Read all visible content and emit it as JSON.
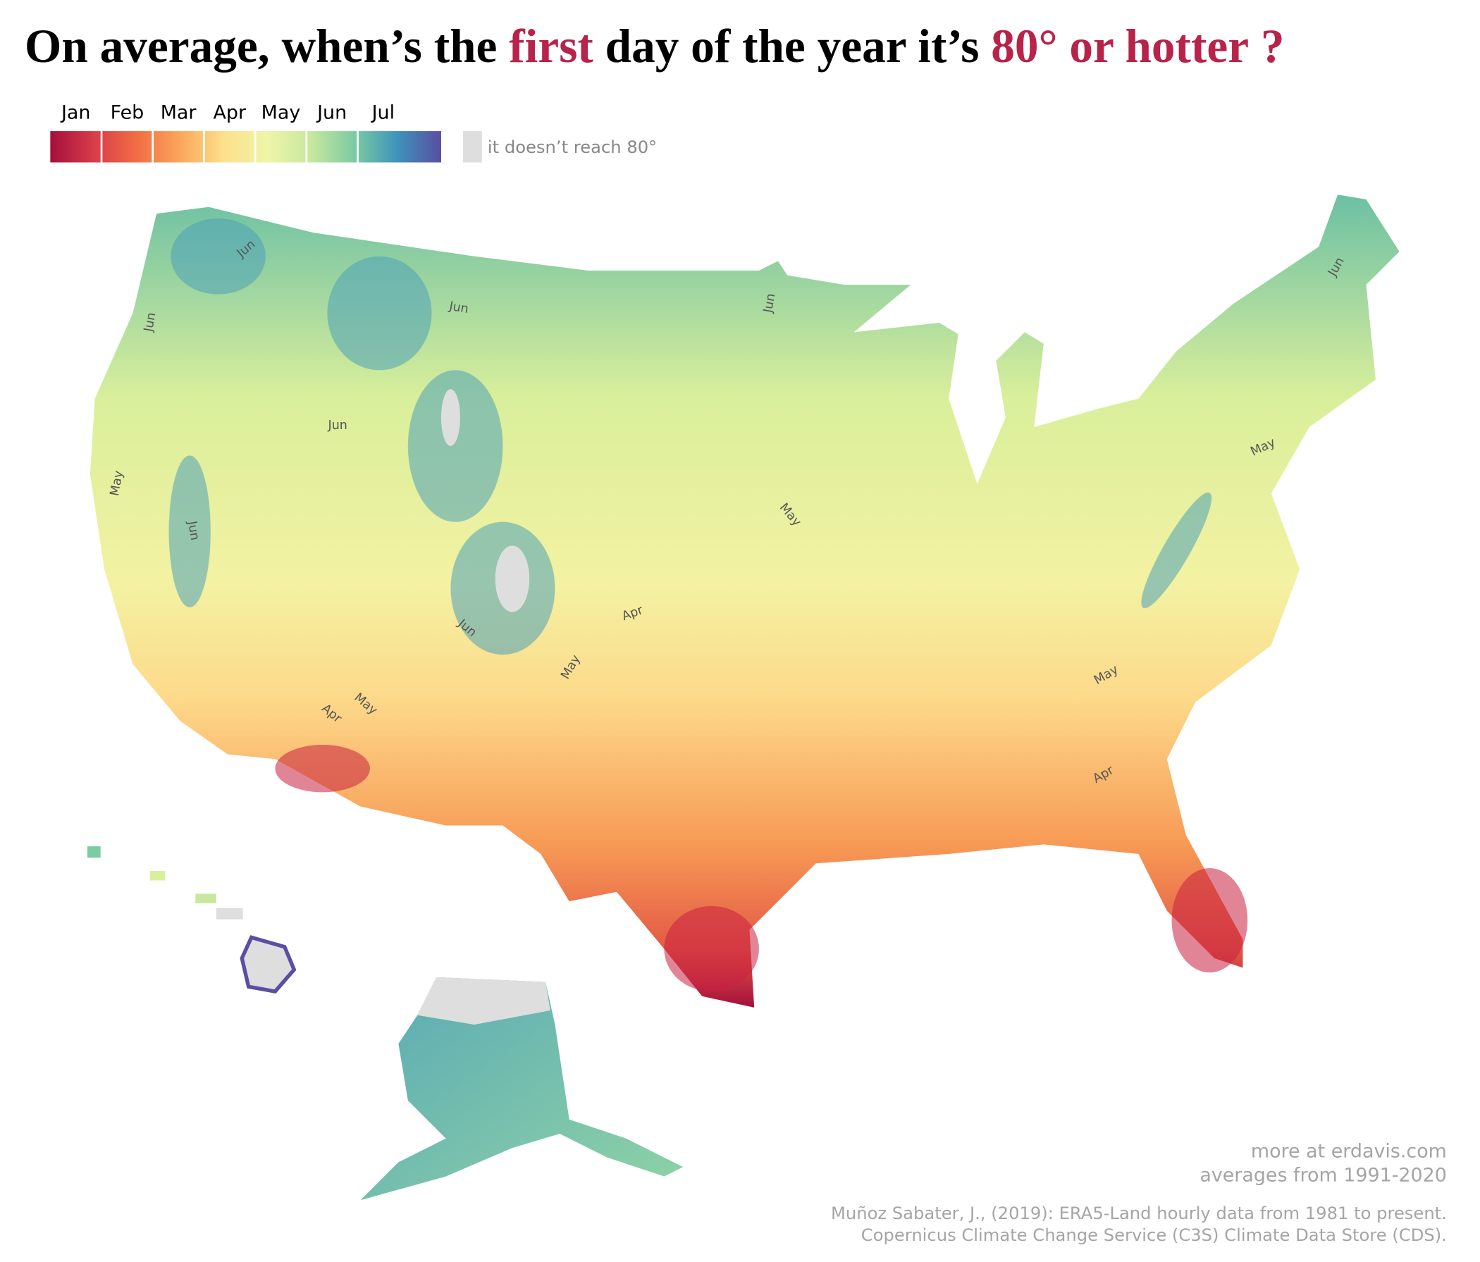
{
  "title": [
    "On average, when’s the ",
    "first",
    " day of the year it’s ",
    "80° or hotter",
    " ?"
  ],
  "legend": {
    "months": [
      "Jan",
      "Feb",
      "Mar",
      "Apr",
      "May",
      "Jun",
      "Jul"
    ],
    "colors": [
      "#a50f3c",
      "#d73c4a",
      "#f26d43",
      "#fba75c",
      "#fde08b",
      "#eef5a8",
      "#c7e89e",
      "#7ccba2",
      "#3d93bb",
      "#5b4ea2"
    ],
    "no_reach": "it doesn’t reach 80°",
    "no_reach_color": "#dedede"
  },
  "contour_labels": [
    "Jun",
    "Jun",
    "Jun",
    "Jun",
    "Jun",
    "Jun",
    "Jun",
    "Jun",
    "May",
    "May",
    "May",
    "May",
    "May",
    "May",
    "Apr",
    "Apr",
    "Apr"
  ],
  "credits": {
    "site": "more at erdavis.com",
    "period": "averages from 1991-2020",
    "source_1": "Muñoz Sabater, J., (2019): ERA5-Land hourly data from 1981 to present.",
    "source_2": "Copernicus Climate Change Service (C3S) Climate Data Store (CDS)."
  }
}
